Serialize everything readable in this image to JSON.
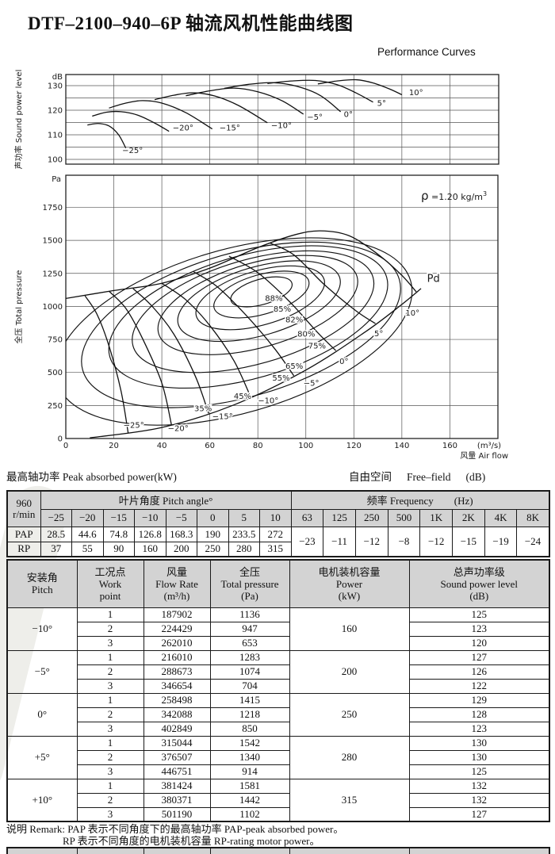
{
  "title": "DTF–2100–940–6P 轴流风机性能曲线图",
  "subtitle": "Performance Curves",
  "captions": {
    "peak_power": "最高轴功率 Peak absorbed power(kW)",
    "free_field": {
      "cn": "自由空间",
      "en": "Free–field",
      "unit": "(dB)"
    }
  },
  "remark": {
    "line1": "说明 Remark: PAP 表示不同角度下的最高轴功率 PAP-peak absorbed power。",
    "line2": "RP 表示不同角度的电机装机容量 RP-rating motor power。"
  },
  "table1": {
    "rpm_line1": "960",
    "rpm_line2": "r/min",
    "pitch_header": "叶片角度 Pitch angle°",
    "freq_header": "频率 Frequency　　(Hz)",
    "angles": [
      "−25",
      "−20",
      "−15",
      "−10",
      "−5",
      "0",
      "5",
      "10"
    ],
    "pap_label": "PAP",
    "pap_values": [
      "28.5",
      "44.6",
      "74.8",
      "126.8",
      "168.3",
      "190",
      "233.5",
      "272"
    ],
    "rp_label": "RP",
    "rp_values": [
      "37",
      "55",
      "90",
      "160",
      "200",
      "250",
      "280",
      "315"
    ],
    "freqs": [
      "63",
      "125",
      "250",
      "500",
      "1K",
      "2K",
      "4K",
      "8K"
    ],
    "freq_values": [
      "−23",
      "−11",
      "−12",
      "−8",
      "−12",
      "−15",
      "−19",
      "−24"
    ]
  },
  "table2": {
    "headers": [
      [
        "安装角",
        "Pitch"
      ],
      [
        "工况点",
        "Work",
        "point"
      ],
      [
        "风量",
        "Flow Rate",
        "(m³/h)"
      ],
      [
        "全压",
        "Total pressure",
        "(Pa)"
      ],
      [
        "电机装机容量",
        "Power",
        "(kW)"
      ],
      [
        "总声功率级",
        "Sound power level",
        "(dB)"
      ]
    ],
    "groups": [
      {
        "pitch": "−10°",
        "power": "160",
        "rows": [
          {
            "point": "1",
            "flow": "187902",
            "pressure": "1136",
            "spl": "125"
          },
          {
            "point": "2",
            "flow": "224429",
            "pressure": "947",
            "spl": "123"
          },
          {
            "point": "3",
            "flow": "262010",
            "pressure": "653",
            "spl": "120"
          }
        ]
      },
      {
        "pitch": "−5°",
        "power": "200",
        "rows": [
          {
            "point": "1",
            "flow": "216010",
            "pressure": "1283",
            "spl": "127"
          },
          {
            "point": "2",
            "flow": "288673",
            "pressure": "1074",
            "spl": "126"
          },
          {
            "point": "3",
            "flow": "346654",
            "pressure": "704",
            "spl": "122"
          }
        ]
      },
      {
        "pitch": "0°",
        "power": "250",
        "rows": [
          {
            "point": "1",
            "flow": "258498",
            "pressure": "1415",
            "spl": "129"
          },
          {
            "point": "2",
            "flow": "342088",
            "pressure": "1218",
            "spl": "128"
          },
          {
            "point": "3",
            "flow": "402849",
            "pressure": "850",
            "spl": "123"
          }
        ]
      },
      {
        "pitch": "+5°",
        "power": "280",
        "rows": [
          {
            "point": "1",
            "flow": "315044",
            "pressure": "1542",
            "spl": "130"
          },
          {
            "point": "2",
            "flow": "376507",
            "pressure": "1340",
            "spl": "130"
          },
          {
            "point": "3",
            "flow": "446751",
            "pressure": "914",
            "spl": "125"
          }
        ]
      },
      {
        "pitch": "+10°",
        "power": "315",
        "rows": [
          {
            "point": "1",
            "flow": "381424",
            "pressure": "1581",
            "spl": "132"
          },
          {
            "point": "2",
            "flow": "380371",
            "pressure": "1442",
            "spl": "132"
          },
          {
            "point": "3",
            "flow": "501190",
            "pressure": "1102",
            "spl": "127"
          }
        ]
      }
    ]
  },
  "chart_data": [
    {
      "type": "line",
      "id": "sound-power-chart",
      "y_unit": "dB",
      "y_title": "声功率 Sound power level",
      "ylim": [
        100,
        134
      ],
      "yticks": [
        100,
        110,
        120,
        130
      ],
      "series": [
        {
          "name": "−25°",
          "label_pos": [
            23.5,
            102.6
          ],
          "points": [
            [
              9,
              114
            ],
            [
              13.5,
              114.6
            ],
            [
              18,
              113.6
            ],
            [
              22,
              110
            ],
            [
              25,
              104.6
            ]
          ]
        },
        {
          "name": "−20°",
          "label_pos": [
            44.5,
            111.8
          ],
          "points": [
            [
              11,
              117.6
            ],
            [
              17,
              119.2
            ],
            [
              23,
              119.4
            ],
            [
              30,
              118
            ],
            [
              37,
              114.8
            ],
            [
              43,
              111.4
            ]
          ]
        },
        {
          "name": "−15°",
          "label_pos": [
            64,
            111.8
          ],
          "points": [
            [
              18,
              120.9
            ],
            [
              25,
              122.9
            ],
            [
              32,
              123.9
            ],
            [
              40,
              122.9
            ],
            [
              50,
              119
            ],
            [
              61,
              112.4
            ]
          ]
        },
        {
          "name": "−10°",
          "label_pos": [
            85.5,
            112.8
          ],
          "points": [
            [
              37,
              124.3
            ],
            [
              45,
              126.1
            ],
            [
              53,
              127.1
            ],
            [
              62,
              125.8
            ],
            [
              72,
              121.9
            ],
            [
              84,
              114.9
            ]
          ]
        },
        {
          "name": "−5°",
          "label_pos": [
            100.5,
            116.1
          ],
          "points": [
            [
              50,
              125.9
            ],
            [
              60,
              127.9
            ],
            [
              70,
              129
            ],
            [
              80,
              127.5
            ],
            [
              90,
              123.9
            ],
            [
              99,
              118.4
            ]
          ]
        },
        {
          "name": "0°",
          "label_pos": [
            115.8,
            117.3
          ],
          "points": [
            [
              66,
              128.9
            ],
            [
              76,
              130.5
            ],
            [
              86,
              131.2
            ],
            [
              96,
              129.8
            ],
            [
              106,
              126
            ],
            [
              114.5,
              119.4
            ]
          ]
        },
        {
          "name": "5°",
          "label_pos": [
            129.7,
            121.7
          ],
          "points": [
            [
              84,
              130.9
            ],
            [
              94,
              131.9
            ],
            [
              104,
              132.1
            ],
            [
              113,
              130.4
            ],
            [
              121,
              127
            ],
            [
              128,
              123.3
            ]
          ]
        },
        {
          "name": "10°",
          "label_pos": [
            143,
            126.1
          ],
          "points": [
            [
              105,
              130.7
            ],
            [
              113,
              131.9
            ],
            [
              121,
              132.4
            ],
            [
              128,
              131.1
            ],
            [
              135,
              128.6
            ],
            [
              140,
              126.3
            ]
          ]
        }
      ]
    },
    {
      "type": "line",
      "id": "total-pressure-chart",
      "y_unit": "Pa",
      "y_title": "全压 Total pressure",
      "x_title": "风量 Air flow",
      "x_unit": "(m³/s)",
      "xlim": [
        0,
        180
      ],
      "xticks": [
        0,
        20,
        40,
        60,
        80,
        100,
        120,
        140,
        160
      ],
      "ylim": [
        0,
        1990
      ],
      "yticks": [
        0,
        250,
        500,
        750,
        1000,
        1250,
        1500,
        1750
      ],
      "density_label": {
        "symbol": "ρ",
        "text": " =1.20 kg/m",
        "sup": "3"
      },
      "pd_curve": {
        "label": "Pd",
        "label_pos": [
          150.5,
          1185
        ],
        "points": [
          [
            10,
            5
          ],
          [
            40,
            83
          ],
          [
            70,
            254
          ],
          [
            100,
            518
          ],
          [
            125,
            810
          ],
          [
            140,
            1015
          ],
          [
            148,
            1135
          ]
        ]
      },
      "efficiency_contours": {
        "rot_deg": -16,
        "items": [
          {
            "label": "88%",
            "center": [
              81.5,
              1110
            ],
            "rx_q": 13.2,
            "ry_pa": 96,
            "label_pos": [
              83,
              1040
            ]
          },
          {
            "label": "85%",
            "center": [
              81.5,
              1090
            ],
            "rx_q": 20.5,
            "ry_pa": 150,
            "label_pos": [
              86.5,
              960
            ]
          },
          {
            "label": "82%",
            "center": [
              81,
              1065
            ],
            "rx_q": 27.7,
            "ry_pa": 205,
            "label_pos": [
              91.5,
              880
            ]
          },
          {
            "label": "80%",
            "center": [
              80.5,
              1040
            ],
            "rx_q": 35,
            "ry_pa": 260,
            "label_pos": [
              96.5,
              770
            ]
          },
          {
            "label": "75%",
            "center": [
              80,
              1010
            ],
            "rx_q": 43,
            "ry_pa": 320,
            "label_pos": [
              101,
              682
            ]
          },
          {
            "label": "65%",
            "center": [
              78,
              960
            ],
            "rx_q": 52,
            "ry_pa": 395,
            "label_pos": [
              91.5,
              528
            ]
          },
          {
            "label": "55%",
            "center": [
              76,
              920
            ],
            "rx_q": 60,
            "ry_pa": 465,
            "label_pos": [
              86,
              438
            ]
          },
          {
            "label": "45%",
            "center": [
              73,
              860
            ],
            "rx_q": 68.6,
            "ry_pa": 545,
            "label_pos": [
              70,
              300
            ]
          },
          {
            "label": "35%",
            "center": [
              70,
              810
            ],
            "rx_q": 76.6,
            "ry_pa": 620,
            "label_pos": [
              53.5,
              206
            ]
          }
        ]
      },
      "series": [
        {
          "name": "−25°",
          "label_pos": [
            24,
            80
          ],
          "points": [
            [
              8,
              1080
            ],
            [
              13,
              940
            ],
            [
              18,
              700
            ],
            [
              23,
              360
            ],
            [
              26,
              40
            ]
          ]
        },
        {
          "name": "−20°",
          "label_pos": [
            42.5,
            58
          ],
          "points": [
            [
              18,
              1115
            ],
            [
              25,
              985
            ],
            [
              32,
              755
            ],
            [
              40,
              420
            ],
            [
              44,
              105
            ]
          ]
        },
        {
          "name": "−15°",
          "label_pos": [
            61,
            148
          ],
          "points": [
            [
              28,
              1135
            ],
            [
              36,
              1000
            ],
            [
              45,
              790
            ],
            [
              54,
              470
            ],
            [
              59.5,
              190
            ]
          ]
        },
        {
          "name": "−10°",
          "label_pos": [
            80,
            268
          ],
          "points": [
            [
              40,
              1175
            ],
            [
              50,
              1050
            ],
            [
              60,
              855
            ],
            [
              70,
              590
            ],
            [
              77,
              315
            ]
          ]
        },
        {
          "name": "−5°",
          "label_pos": [
            99,
            400
          ],
          "points": [
            [
              53,
              1265
            ],
            [
              63,
              1150
            ],
            [
              75,
              935
            ],
            [
              87,
              680
            ],
            [
              95,
              475
            ]
          ]
        },
        {
          "name": "0°",
          "label_pos": [
            114,
            565
          ],
          "points": [
            [
              68,
              1380
            ],
            [
              80,
              1255
            ],
            [
              93,
              1040
            ],
            [
              105,
              800
            ],
            [
              112.5,
              665
            ]
          ]
        },
        {
          "name": "5°",
          "label_pos": [
            128.5,
            775
          ],
          "points": [
            [
              85,
              1480
            ],
            [
              95,
              1390
            ],
            [
              108,
              1160
            ],
            [
              121,
              965
            ],
            [
              129,
              870
            ]
          ]
        },
        {
          "name": "10°",
          "label_pos": [
            141.5,
            930
          ],
          "points": [
            [
              0,
              1060
            ],
            [
              20,
              1120
            ],
            [
              40,
              1175
            ],
            [
              60,
              1290
            ],
            [
              80,
              1445
            ],
            [
              95,
              1540
            ],
            [
              106,
              1572
            ],
            [
              118,
              1535
            ],
            [
              130,
              1395
            ],
            [
              140,
              1235
            ],
            [
              146,
              1110
            ]
          ]
        }
      ]
    }
  ]
}
